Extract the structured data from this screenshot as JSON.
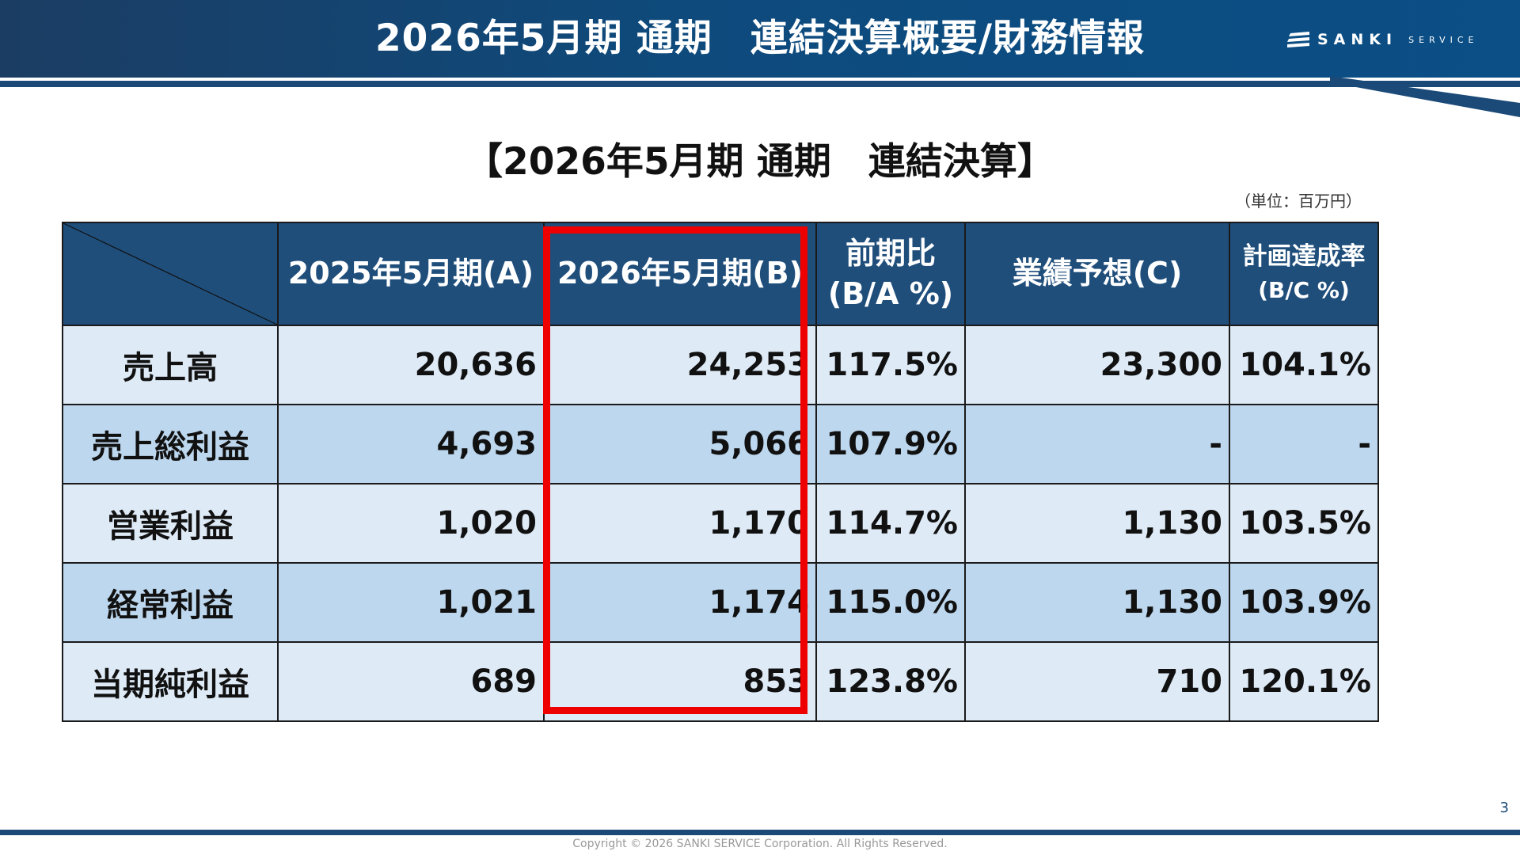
{
  "header": {
    "title": "2026年5月期 通期　連結決算概要/財務情報",
    "logo_main": "SANKI",
    "logo_sub": "SERVICE",
    "colors": {
      "bar": "#1b3d63",
      "accent": "#1b4a78"
    }
  },
  "table_title": "【2026年5月期  通期　連結決算】",
  "unit": "（単位：百万円）",
  "table": {
    "columns": [
      {
        "line1": "",
        "line2": ""
      },
      {
        "line1": "2025年5月期(A)",
        "line2": ""
      },
      {
        "line1": "2026年5月期(B)",
        "line2": ""
      },
      {
        "line1": "前期比",
        "line2": "(B/A %)"
      },
      {
        "line1": "業績予想(C)",
        "line2": ""
      },
      {
        "line1": "計画達成率",
        "line2": "(B/C %)"
      }
    ],
    "rows": [
      {
        "label": "売上高",
        "a": "20,636",
        "b": "24,253",
        "ba": "117.5%",
        "c": "23,300",
        "bc": "104.1%"
      },
      {
        "label": "売上総利益",
        "a": "4,693",
        "b": "5,066",
        "ba": "107.9%",
        "c": "-",
        "bc": "-"
      },
      {
        "label": "営業利益",
        "a": "1,020",
        "b": "1,170",
        "ba": "114.7%",
        "c": "1,130",
        "bc": "103.5%"
      },
      {
        "label": "経常利益",
        "a": "1,021",
        "b": "1,174",
        "ba": "115.0%",
        "c": "1,130",
        "bc": "103.9%"
      },
      {
        "label": "当期純利益",
        "a": "689",
        "b": "853",
        "ba": "123.8%",
        "c": "710",
        "bc": "120.1%"
      }
    ],
    "highlight_color": "#ee0000"
  },
  "page_number": "3",
  "copyright": "Copyright © 2026 SANKI SERVICE Corporation. All Rights Reserved."
}
